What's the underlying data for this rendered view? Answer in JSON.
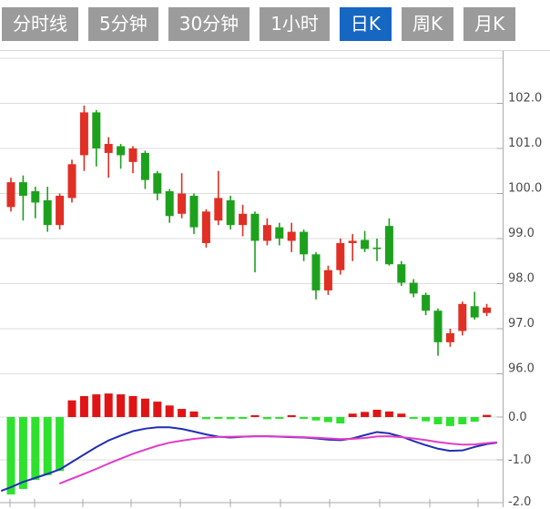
{
  "tabs": {
    "items": [
      {
        "label": "分时线",
        "name": "tab-minute-line",
        "active": false
      },
      {
        "label": "5分钟",
        "name": "tab-5min",
        "active": false
      },
      {
        "label": "30分钟",
        "name": "tab-30min",
        "active": false
      },
      {
        "label": "1小时",
        "name": "tab-1hour",
        "active": false
      },
      {
        "label": "日K",
        "name": "tab-daily-k",
        "active": true
      },
      {
        "label": "周K",
        "name": "tab-weekly-k",
        "active": false
      },
      {
        "label": "月K",
        "name": "tab-monthly-k",
        "active": false
      }
    ],
    "active_label": "日K"
  },
  "colors": {
    "tab_gray": "#9B9B9B",
    "tab_active_blue": "#1567C2",
    "candle_up_red": "#E02F24",
    "candle_down_green": "#1DA11D",
    "macd_bar_red": "#E01414",
    "macd_bar_green": "#2FE12F",
    "dif_line_blue": "#202FB2",
    "dea_line_magenta": "#E23BC8",
    "grid_line": "#DEDEDE",
    "axis_line": "#AAAAAA",
    "axis_text": "#4A4A4A"
  },
  "chart_data": {
    "type": "candlestick+macd",
    "title": "",
    "price_axis": {
      "side": "right",
      "tick_labels": [
        "102.0",
        "101.0",
        "100.0",
        "99.0",
        "98.0",
        "97.0",
        "96.0"
      ],
      "tick_values": [
        102,
        101,
        100,
        99,
        98,
        97,
        96
      ],
      "grid_values": [
        103,
        102,
        101,
        100,
        99,
        98,
        97,
        96
      ],
      "range": [
        95.8,
        103.0
      ]
    },
    "macd_axis": {
      "side": "right",
      "tick_labels": [
        "0.0",
        "-1.0",
        "-2.0"
      ],
      "tick_values": [
        0,
        -1,
        -2
      ],
      "range": [
        -2.1,
        0.6
      ]
    },
    "candles_note": "each candle = [open, close, low, high, dir] ; dir u=up(red) d=down(green)",
    "candles": [
      [
        99.7,
        100.25,
        99.6,
        100.35,
        "u"
      ],
      [
        100.25,
        99.95,
        99.4,
        100.4,
        "d"
      ],
      [
        100.05,
        99.8,
        99.45,
        100.15,
        "d"
      ],
      [
        99.85,
        99.3,
        99.15,
        100.15,
        "d"
      ],
      [
        99.3,
        99.95,
        99.2,
        100.0,
        "u"
      ],
      [
        99.9,
        100.65,
        99.8,
        100.75,
        "u"
      ],
      [
        100.85,
        101.8,
        100.5,
        101.95,
        "u"
      ],
      [
        101.8,
        101.0,
        100.6,
        101.85,
        "d"
      ],
      [
        100.9,
        101.1,
        100.35,
        101.25,
        "u"
      ],
      [
        101.05,
        100.85,
        100.55,
        101.1,
        "d"
      ],
      [
        100.7,
        101.0,
        100.45,
        101.05,
        "u"
      ],
      [
        100.9,
        100.3,
        100.1,
        100.95,
        "d"
      ],
      [
        100.45,
        100.0,
        99.85,
        100.5,
        "d"
      ],
      [
        100.05,
        99.5,
        99.35,
        100.1,
        "d"
      ],
      [
        99.55,
        100.0,
        99.45,
        100.45,
        "u"
      ],
      [
        99.95,
        99.25,
        99.1,
        100.0,
        "d"
      ],
      [
        98.9,
        99.6,
        98.8,
        99.65,
        "u"
      ],
      [
        99.4,
        99.9,
        99.3,
        100.5,
        "u"
      ],
      [
        99.85,
        99.3,
        99.2,
        99.95,
        "d"
      ],
      [
        99.3,
        99.55,
        99.05,
        99.75,
        "u"
      ],
      [
        99.55,
        98.95,
        98.25,
        99.6,
        "d"
      ],
      [
        98.95,
        99.3,
        98.85,
        99.45,
        "u"
      ],
      [
        99.25,
        99.0,
        98.85,
        99.35,
        "d"
      ],
      [
        98.95,
        99.15,
        98.7,
        99.35,
        "u"
      ],
      [
        99.15,
        98.65,
        98.5,
        99.2,
        "d"
      ],
      [
        98.65,
        97.85,
        97.65,
        98.7,
        "d"
      ],
      [
        97.85,
        98.3,
        97.75,
        98.4,
        "u"
      ],
      [
        98.3,
        98.9,
        98.2,
        99.0,
        "u"
      ],
      [
        98.9,
        98.95,
        98.5,
        99.1,
        "u"
      ],
      [
        98.97,
        98.77,
        98.7,
        99.17,
        "d"
      ],
      [
        98.8,
        98.78,
        98.5,
        99.0,
        "d"
      ],
      [
        99.28,
        98.43,
        98.4,
        99.45,
        "d"
      ],
      [
        98.43,
        98.02,
        97.95,
        98.5,
        "d"
      ],
      [
        98.02,
        97.78,
        97.7,
        98.1,
        "d"
      ],
      [
        97.75,
        97.4,
        97.3,
        97.8,
        "d"
      ],
      [
        97.4,
        96.7,
        96.4,
        97.45,
        "d"
      ],
      [
        96.7,
        96.9,
        96.6,
        97.0,
        "u"
      ],
      [
        96.95,
        97.55,
        96.85,
        97.6,
        "u"
      ],
      [
        97.5,
        97.25,
        97.2,
        97.82,
        "d"
      ],
      [
        97.35,
        97.47,
        97.28,
        97.55,
        "u"
      ]
    ],
    "macd": {
      "histogram": [
        -1.81,
        -1.68,
        -1.47,
        -1.36,
        -1.26,
        0.39,
        0.49,
        0.53,
        0.55,
        0.53,
        0.49,
        0.43,
        0.36,
        0.27,
        0.19,
        0.13,
        -0.05,
        -0.04,
        -0.05,
        -0.04,
        0.04,
        -0.05,
        -0.04,
        0.04,
        -0.03,
        -0.08,
        -0.12,
        -0.15,
        0.08,
        0.12,
        0.17,
        0.13,
        0.08,
        -0.04,
        -0.1,
        -0.17,
        -0.21,
        -0.17,
        -0.11,
        0.05
      ],
      "dif_points": [
        [
          2,
          -1.72
        ],
        [
          12,
          -1.64
        ],
        [
          25,
          -1.52
        ],
        [
          39,
          -1.42
        ],
        [
          52,
          -1.33
        ],
        [
          66,
          -1.22
        ],
        [
          79,
          -1.05
        ],
        [
          92,
          -0.88
        ],
        [
          106,
          -0.7
        ],
        [
          119,
          -0.55
        ],
        [
          133,
          -0.43
        ],
        [
          146,
          -0.33
        ],
        [
          160,
          -0.27
        ],
        [
          173,
          -0.24
        ],
        [
          186,
          -0.24
        ],
        [
          200,
          -0.28
        ],
        [
          213,
          -0.34
        ],
        [
          227,
          -0.41
        ],
        [
          240,
          -0.46
        ],
        [
          253,
          -0.48
        ],
        [
          267,
          -0.46
        ],
        [
          280,
          -0.45
        ],
        [
          294,
          -0.45
        ],
        [
          307,
          -0.46
        ],
        [
          320,
          -0.47
        ],
        [
          334,
          -0.48
        ],
        [
          347,
          -0.5
        ],
        [
          361,
          -0.53
        ],
        [
          374,
          -0.54
        ],
        [
          387,
          -0.5
        ],
        [
          401,
          -0.42
        ],
        [
          414,
          -0.35
        ],
        [
          427,
          -0.38
        ],
        [
          441,
          -0.46
        ],
        [
          454,
          -0.56
        ],
        [
          468,
          -0.66
        ],
        [
          481,
          -0.74
        ],
        [
          494,
          -0.79
        ],
        [
          508,
          -0.78
        ],
        [
          521,
          -0.7
        ],
        [
          535,
          -0.63
        ],
        [
          545,
          -0.6
        ]
      ],
      "dea_points": [
        [
          66,
          -1.55
        ],
        [
          79,
          -1.44
        ],
        [
          92,
          -1.33
        ],
        [
          106,
          -1.21
        ],
        [
          119,
          -1.09
        ],
        [
          133,
          -0.97
        ],
        [
          146,
          -0.86
        ],
        [
          160,
          -0.76
        ],
        [
          173,
          -0.67
        ],
        [
          186,
          -0.6
        ],
        [
          200,
          -0.55
        ],
        [
          213,
          -0.51
        ],
        [
          227,
          -0.48
        ],
        [
          240,
          -0.465
        ],
        [
          253,
          -0.46
        ],
        [
          267,
          -0.455
        ],
        [
          280,
          -0.45
        ],
        [
          294,
          -0.45
        ],
        [
          307,
          -0.455
        ],
        [
          320,
          -0.46
        ],
        [
          334,
          -0.47
        ],
        [
          347,
          -0.485
        ],
        [
          361,
          -0.5
        ],
        [
          374,
          -0.515
        ],
        [
          387,
          -0.51
        ],
        [
          401,
          -0.49
        ],
        [
          414,
          -0.455
        ],
        [
          427,
          -0.45
        ],
        [
          441,
          -0.47
        ],
        [
          454,
          -0.5
        ],
        [
          468,
          -0.54
        ],
        [
          481,
          -0.585
        ],
        [
          494,
          -0.62
        ],
        [
          508,
          -0.645
        ],
        [
          521,
          -0.64
        ],
        [
          535,
          -0.61
        ],
        [
          545,
          -0.59
        ]
      ]
    },
    "layout_hints": {
      "grid": true,
      "legend": "none",
      "bottom_axis_ticks_x": [
        11,
        38,
        91,
        144,
        198,
        253,
        308,
        362,
        417,
        472,
        525
      ]
    }
  }
}
